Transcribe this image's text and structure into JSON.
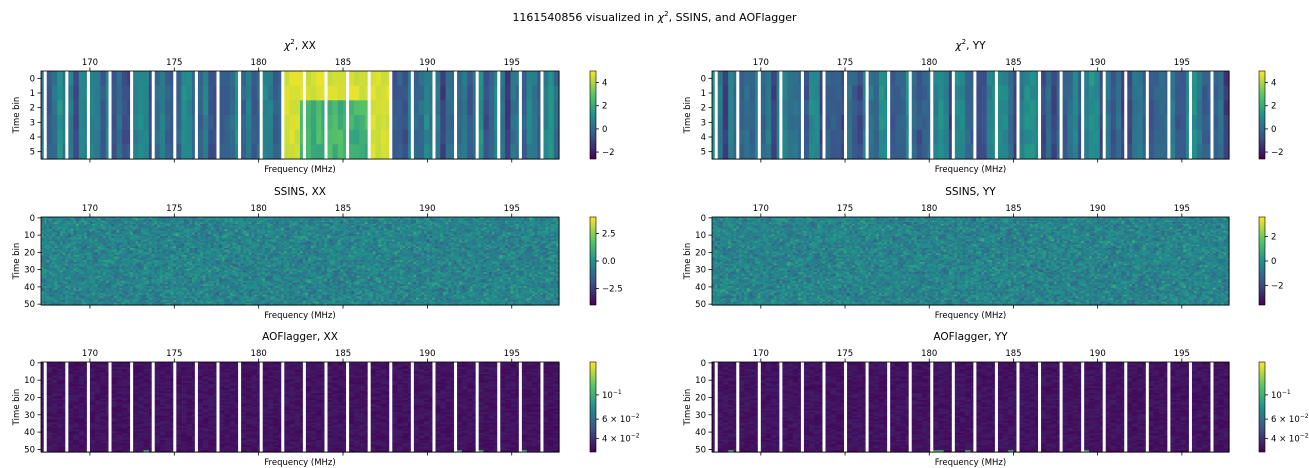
{
  "suptitle": {
    "pre": "1161540856 visualized in ",
    "chi": "χ",
    "sup": "2",
    "post": ", SSINS, and AOFlagger"
  },
  "palette": [
    "#440154",
    "#3b528b",
    "#21918c",
    "#5ec962",
    "#fde725"
  ],
  "chart_data": [
    {
      "type": "heatmap",
      "name_prefix": "chi2-xx",
      "row": 0,
      "col": 0,
      "title": {
        "chi": "χ",
        "sup": "2",
        "rest": ", XX"
      },
      "xlabel": "Frequency (MHz)",
      "ylabel": "Time bin",
      "xlim": [
        167.1,
        197.8
      ],
      "xticks": [
        170,
        175,
        180,
        185,
        190,
        195
      ],
      "ylim": [
        -0.5,
        5.5
      ],
      "yticks": [
        0,
        1,
        2,
        3,
        4,
        5
      ],
      "colorbar": {
        "scale": "linear",
        "min": -2.6,
        "max": 5.0,
        "ticks": [
          {
            "v": 4,
            "label": "4"
          },
          {
            "v": 2,
            "label": "2"
          },
          {
            "v": 0,
            "label": "0"
          },
          {
            "v": -2,
            "label": "−2"
          }
        ]
      },
      "grid_cells": [
        6,
        96
      ],
      "flagged_channel_spacing_mhz": 1.28,
      "rfi_band_mhz": [
        181.4,
        187.8
      ]
    },
    {
      "type": "heatmap",
      "name_prefix": "chi2-yy",
      "row": 0,
      "col": 1,
      "title": {
        "chi": "χ",
        "sup": "2",
        "rest": ", YY"
      },
      "xlabel": "Frequency (MHz)",
      "ylabel": "Time bin",
      "xlim": [
        167.1,
        197.8
      ],
      "xticks": [
        170,
        175,
        180,
        185,
        190,
        195
      ],
      "ylim": [
        -0.5,
        5.5
      ],
      "yticks": [
        0,
        1,
        2,
        3,
        4,
        5
      ],
      "colorbar": {
        "scale": "linear",
        "min": -2.6,
        "max": 5.0,
        "ticks": [
          {
            "v": 4,
            "label": "4"
          },
          {
            "v": 2,
            "label": "2"
          },
          {
            "v": 0,
            "label": "0"
          },
          {
            "v": -2,
            "label": "−2"
          }
        ]
      },
      "grid_cells": [
        6,
        96
      ],
      "flagged_channel_spacing_mhz": 1.28
    },
    {
      "type": "heatmap",
      "name_prefix": "ssins-xx",
      "row": 1,
      "col": 0,
      "title": {
        "rest": "SSINS, XX"
      },
      "xlabel": "Frequency (MHz)",
      "ylabel": "Time bin",
      "xlim": [
        167.1,
        197.8
      ],
      "xticks": [
        170,
        175,
        180,
        185,
        190,
        195
      ],
      "ylim": [
        -0.5,
        50.5
      ],
      "yticks": [
        0,
        10,
        20,
        30,
        40,
        50
      ],
      "colorbar": {
        "scale": "linear",
        "min": -4.0,
        "max": 4.0,
        "ticks": [
          {
            "v": 2.5,
            "label": "2.5"
          },
          {
            "v": 0,
            "label": "0.0"
          },
          {
            "v": -2.5,
            "label": "−2.5"
          }
        ]
      },
      "grid_cells": [
        51,
        192
      ]
    },
    {
      "type": "heatmap",
      "name_prefix": "ssins-yy",
      "row": 1,
      "col": 1,
      "title": {
        "rest": "SSINS, YY"
      },
      "xlabel": "Frequency (MHz)",
      "ylabel": "Time bin",
      "xlim": [
        167.1,
        197.8
      ],
      "xticks": [
        170,
        175,
        180,
        185,
        190,
        195
      ],
      "ylim": [
        -0.5,
        50.5
      ],
      "yticks": [
        0,
        10,
        20,
        30,
        40,
        50
      ],
      "colorbar": {
        "scale": "linear",
        "min": -3.6,
        "max": 3.6,
        "ticks": [
          {
            "v": 2,
            "label": "2"
          },
          {
            "v": 0,
            "label": "0"
          },
          {
            "v": -2,
            "label": "−2"
          }
        ]
      },
      "grid_cells": [
        51,
        192
      ]
    },
    {
      "type": "heatmap",
      "name_prefix": "aoflagger-xx",
      "row": 2,
      "col": 0,
      "title": {
        "rest": "AOFlagger, XX"
      },
      "xlabel": "Frequency (MHz)",
      "ylabel": "Time bin",
      "xlim": [
        167.1,
        197.8
      ],
      "xticks": [
        170,
        175,
        180,
        185,
        190,
        195
      ],
      "ylim": [
        -0.5,
        51.5
      ],
      "yticks": [
        0,
        10,
        20,
        30,
        40,
        50
      ],
      "colorbar": {
        "scale": "log",
        "min": 0.03,
        "max": 0.2,
        "ticks": [
          {
            "v": 0.1,
            "label": "10",
            "sup": "−1"
          },
          {
            "v": 0.06,
            "label": "6 × 10",
            "sup": "−2"
          },
          {
            "v": 0.04,
            "label": "4 × 10",
            "sup": "−2"
          }
        ]
      },
      "grid_cells": [
        52,
        96
      ],
      "flagged_channel_spacing_mhz": 1.28
    },
    {
      "type": "heatmap",
      "name_prefix": "aoflagger-yy",
      "row": 2,
      "col": 1,
      "title": {
        "rest": "AOFlagger, YY"
      },
      "xlabel": "Frequency (MHz)",
      "ylabel": "Time bin",
      "xlim": [
        167.1,
        197.8
      ],
      "xticks": [
        170,
        175,
        180,
        185,
        190,
        195
      ],
      "ylim": [
        -0.5,
        51.5
      ],
      "yticks": [
        0,
        10,
        20,
        30,
        40,
        50
      ],
      "colorbar": {
        "scale": "log",
        "min": 0.03,
        "max": 0.2,
        "ticks": [
          {
            "v": 0.1,
            "label": "10",
            "sup": "−1"
          },
          {
            "v": 0.06,
            "label": "6 × 10",
            "sup": "−2"
          },
          {
            "v": 0.04,
            "label": "4 × 10",
            "sup": "−2"
          }
        ]
      },
      "grid_cells": [
        52,
        96
      ],
      "flagged_channel_spacing_mhz": 1.28
    }
  ]
}
